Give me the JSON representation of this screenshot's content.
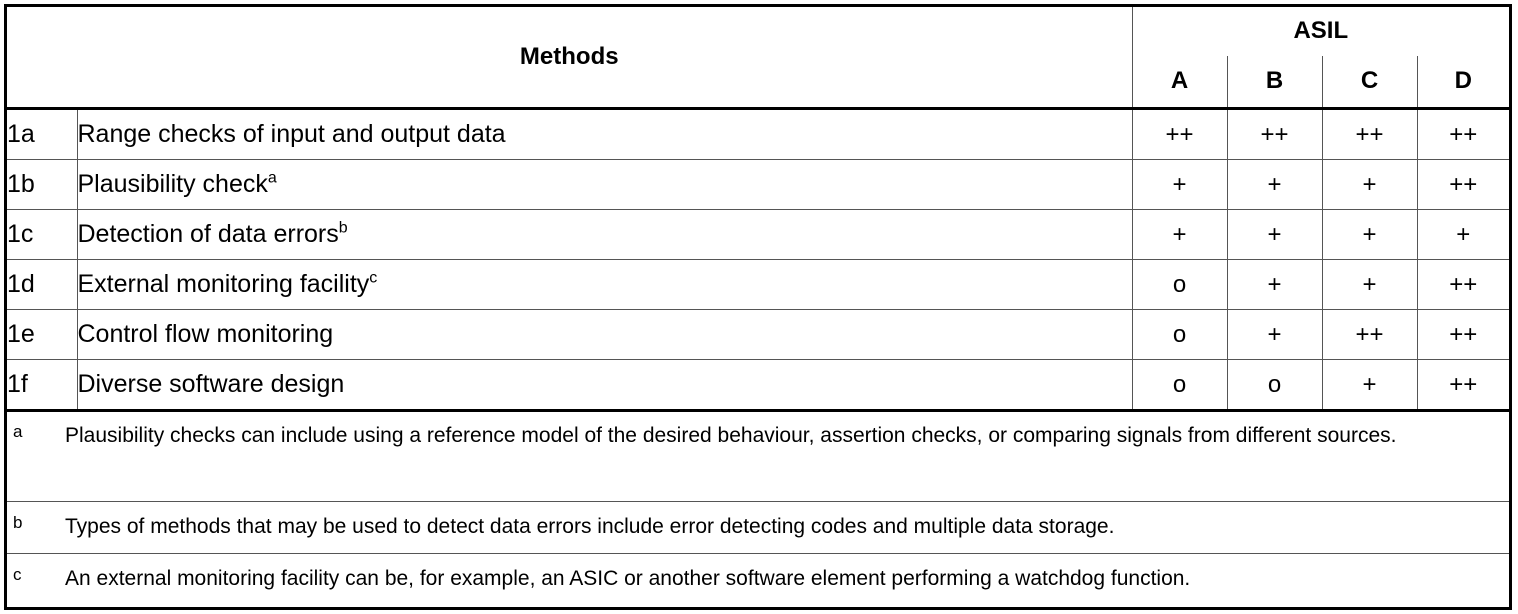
{
  "header": {
    "methods_label": "Methods",
    "asil_label": "ASIL",
    "levels": [
      "A",
      "B",
      "C",
      "D"
    ]
  },
  "rows": [
    {
      "id": "1a",
      "name": "Range checks of input and output data",
      "note": "",
      "ratings": [
        "++",
        "++",
        "++",
        "++"
      ]
    },
    {
      "id": "1b",
      "name": "Plausibility check",
      "note": "a",
      "ratings": [
        "+",
        "+",
        "+",
        "++"
      ]
    },
    {
      "id": "1c",
      "name": "Detection of data errors",
      "note": "b",
      "ratings": [
        "+",
        "+",
        "+",
        "+"
      ]
    },
    {
      "id": "1d",
      "name": "External monitoring facility",
      "note": "c",
      "ratings": [
        "o",
        "+",
        "+",
        "++"
      ]
    },
    {
      "id": "1e",
      "name": "Control flow monitoring",
      "note": "",
      "ratings": [
        "o",
        "+",
        "++",
        "++"
      ]
    },
    {
      "id": "1f",
      "name": "Diverse software design",
      "note": "",
      "ratings": [
        "o",
        "o",
        "+",
        "++"
      ]
    }
  ],
  "notes": [
    {
      "mark": "a",
      "text": "Plausibility checks can include using a reference model of the desired behaviour, assertion checks, or comparing signals from different sources."
    },
    {
      "mark": "b",
      "text": "Types of methods that may be used to detect data errors include error detecting codes and multiple data storage."
    },
    {
      "mark": "c",
      "text": "An external monitoring facility can be, for example, an ASIC or another software element performing a watchdog function."
    }
  ]
}
